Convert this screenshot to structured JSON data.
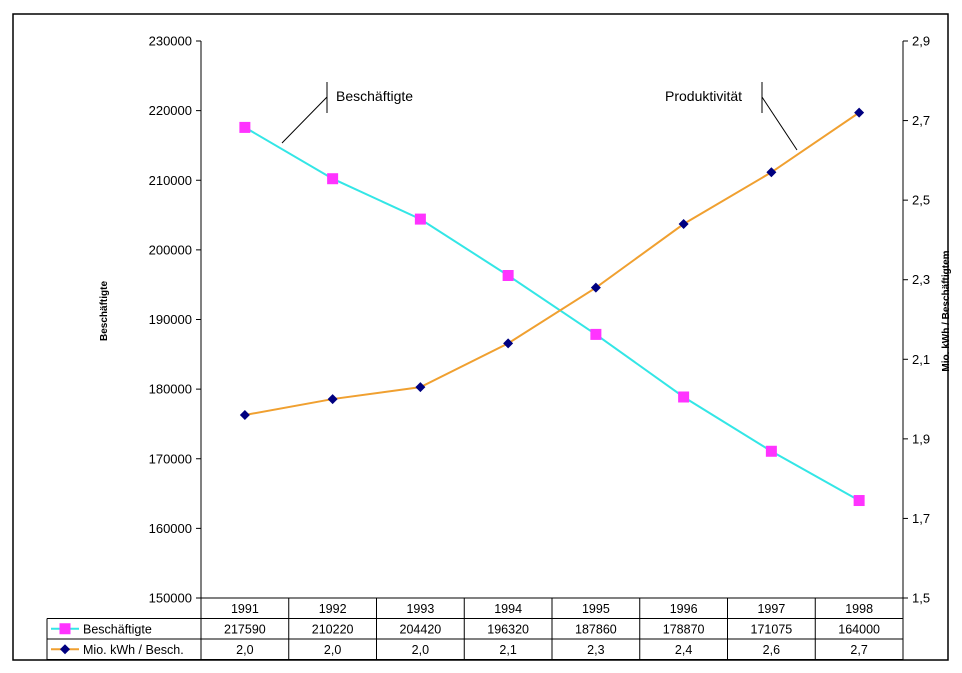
{
  "chart_data": {
    "type": "line",
    "categories": [
      "1991",
      "1992",
      "1993",
      "1994",
      "1995",
      "1996",
      "1997",
      "1998"
    ],
    "series": [
      {
        "name": "Beschäftigte",
        "axis": "left",
        "color": "#33e6e6",
        "marker": "square",
        "marker_color": "#ff33ff",
        "values": [
          217590,
          210220,
          204420,
          196320,
          187860,
          178870,
          171075,
          164000
        ]
      },
      {
        "name": "Mio. kWh / Besch.",
        "axis": "right",
        "color": "#f0a030",
        "marker": "diamond",
        "marker_color": "#000080",
        "values": [
          1.96,
          2.0,
          2.03,
          2.14,
          2.28,
          2.44,
          2.57,
          2.72
        ]
      }
    ],
    "table": {
      "rows": [
        {
          "label": "Beschäftigte",
          "cells": [
            "217590",
            "210220",
            "204420",
            "196320",
            "187860",
            "178870",
            "171075",
            "164000"
          ]
        },
        {
          "label": "Mio. kWh / Besch.",
          "cells": [
            "2,0",
            "2,0",
            "2,0",
            "2,1",
            "2,3",
            "2,4",
            "2,6",
            "2,7"
          ]
        }
      ]
    },
    "ylabel_left": "Beschäftigte",
    "ylabel_right": "Mio. kWh / Beschäftigtem",
    "ylim_left": [
      150000,
      230000
    ],
    "yticks_left": [
      "150000",
      "160000",
      "170000",
      "180000",
      "190000",
      "200000",
      "210000",
      "220000",
      "230000"
    ],
    "ylim_right": [
      1.5,
      2.9
    ],
    "yticks_right": [
      "1,5",
      "1,7",
      "1,9",
      "2,1",
      "2,3",
      "2,5",
      "2,7",
      "2,9"
    ],
    "annotations": [
      "Beschäftigte",
      "Produktivität"
    ],
    "grid": false,
    "legend": "data-table-bottom"
  }
}
